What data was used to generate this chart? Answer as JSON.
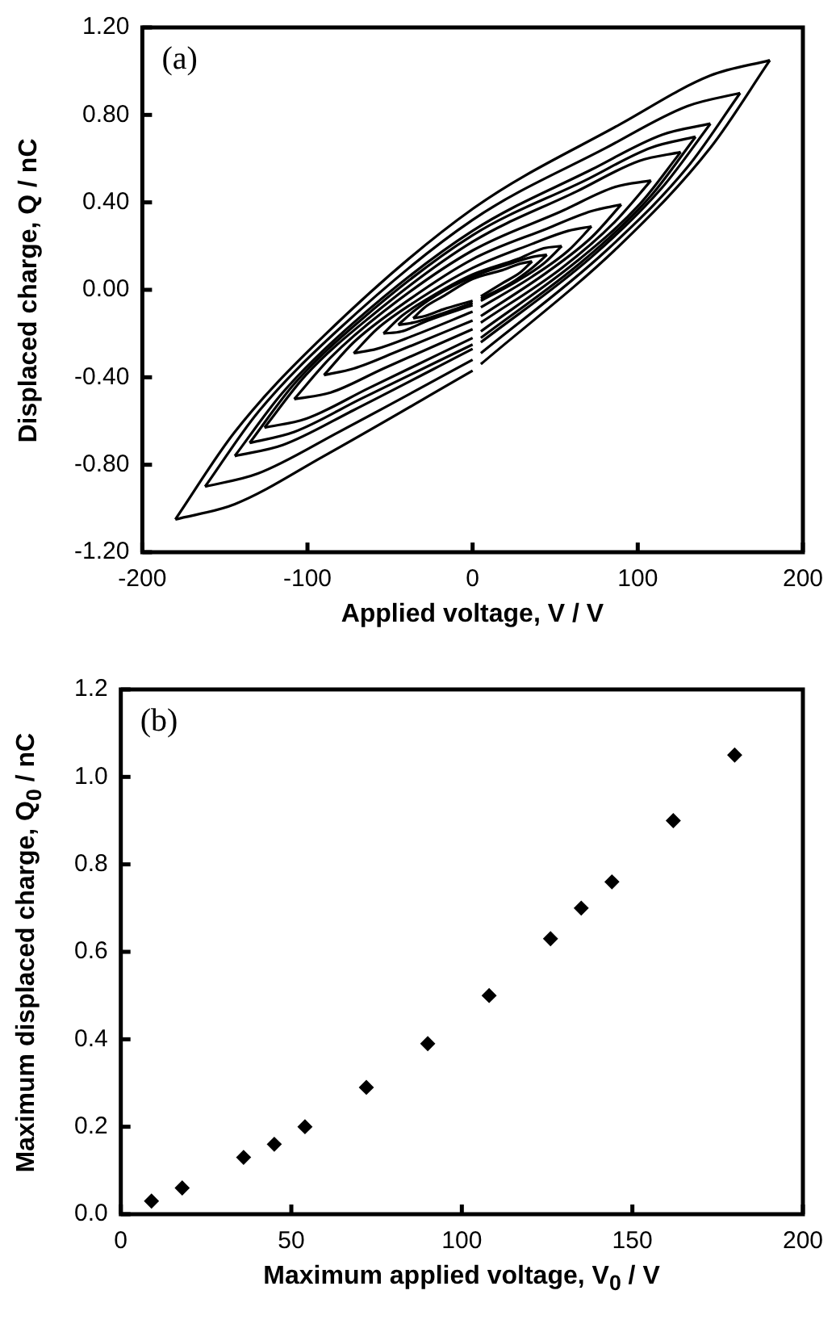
{
  "chart_data": [
    {
      "type": "line",
      "xlabel": "Applied voltage, V / V",
      "ylabel": "Displaced charge, Q / nC",
      "annotations": [
        "(a)"
      ],
      "marker": "none",
      "line_style": "solid",
      "xlim": [
        -200,
        200
      ],
      "xticks": [
        -200,
        -100,
        0,
        100,
        200
      ],
      "ylim": [
        -1.2,
        1.2
      ],
      "yticks": [
        {
          "value": -1.2,
          "label": "-1.20"
        },
        {
          "value": -0.8,
          "label": "-0.80"
        },
        {
          "value": -0.4,
          "label": "-0.40"
        },
        {
          "value": 0,
          "label": "0.00"
        },
        {
          "value": 0.4,
          "label": "0.40"
        },
        {
          "value": 0.8,
          "label": "0.80"
        },
        {
          "value": 1.2,
          "label": "1.20"
        }
      ],
      "series": [
        {
          "color": "#000000",
          "x": [
            -180,
            -144,
            -90,
            0,
            90,
            144,
            180
          ],
          "values": [
            -1.05,
            -0.65,
            -0.21,
            0.37,
            0.76,
            0.98,
            1.05
          ]
        },
        {
          "color": "#000000",
          "x": [
            -180,
            -144,
            -90,
            0
          ],
          "values": [
            -1.05,
            -0.98,
            -0.76,
            -0.37
          ]
        },
        {
          "color": "#000000",
          "x": [
            5,
            90,
            144,
            180
          ],
          "values": [
            -0.34,
            0.21,
            0.65,
            1.05
          ]
        },
        {
          "color": "#000000",
          "x": [
            -162,
            -130,
            -81,
            0,
            81,
            130,
            162
          ],
          "values": [
            -0.9,
            -0.56,
            -0.18,
            0.32,
            0.65,
            0.84,
            0.9
          ]
        },
        {
          "color": "#000000",
          "x": [
            -162,
            -130,
            -81,
            0
          ],
          "values": [
            -0.9,
            -0.84,
            -0.65,
            -0.32
          ]
        },
        {
          "color": "#000000",
          "x": [
            5,
            81,
            130,
            162
          ],
          "values": [
            -0.29,
            0.18,
            0.56,
            0.9
          ]
        },
        {
          "color": "#000000",
          "x": [
            -144,
            -115,
            -72,
            0,
            72,
            115,
            144
          ],
          "values": [
            -0.76,
            -0.47,
            -0.15,
            0.27,
            0.55,
            0.71,
            0.76
          ]
        },
        {
          "color": "#000000",
          "x": [
            -144,
            -115,
            -72,
            0
          ],
          "values": [
            -0.76,
            -0.71,
            -0.55,
            -0.27
          ]
        },
        {
          "color": "#000000",
          "x": [
            5,
            72,
            115,
            144
          ],
          "values": [
            -0.24,
            0.15,
            0.47,
            0.76
          ]
        },
        {
          "color": "#000000",
          "x": [
            -135,
            -108,
            -68,
            0,
            68,
            108,
            135
          ],
          "values": [
            -0.7,
            -0.43,
            -0.14,
            0.25,
            0.5,
            0.65,
            0.7
          ]
        },
        {
          "color": "#000000",
          "x": [
            -135,
            -108,
            -68,
            0
          ],
          "values": [
            -0.7,
            -0.65,
            -0.5,
            -0.25
          ]
        },
        {
          "color": "#000000",
          "x": [
            5,
            68,
            108,
            135
          ],
          "values": [
            -0.22,
            0.14,
            0.43,
            0.7
          ]
        },
        {
          "color": "#000000",
          "x": [
            -126,
            -101,
            -63,
            0,
            63,
            101,
            126
          ],
          "values": [
            -0.63,
            -0.39,
            -0.13,
            0.22,
            0.45,
            0.59,
            0.63
          ]
        },
        {
          "color": "#000000",
          "x": [
            -126,
            -101,
            -63,
            0
          ],
          "values": [
            -0.63,
            -0.59,
            -0.45,
            -0.22
          ]
        },
        {
          "color": "#000000",
          "x": [
            5,
            63,
            101,
            126
          ],
          "values": [
            -0.19,
            0.13,
            0.39,
            0.63
          ]
        },
        {
          "color": "#000000",
          "x": [
            -108,
            -86,
            -54,
            0,
            54,
            86,
            108
          ],
          "values": [
            -0.5,
            -0.31,
            -0.1,
            0.18,
            0.36,
            0.47,
            0.5
          ]
        },
        {
          "color": "#000000",
          "x": [
            -108,
            -86,
            -54,
            0
          ],
          "values": [
            -0.5,
            -0.47,
            -0.36,
            -0.18
          ]
        },
        {
          "color": "#000000",
          "x": [
            5,
            54,
            86,
            108
          ],
          "values": [
            -0.15,
            0.1,
            0.31,
            0.5
          ]
        },
        {
          "color": "#000000",
          "x": [
            -90,
            -72,
            -45,
            0,
            45,
            72,
            90
          ],
          "values": [
            -0.39,
            -0.24,
            -0.08,
            0.14,
            0.28,
            0.36,
            0.39
          ]
        },
        {
          "color": "#000000",
          "x": [
            -90,
            -72,
            -45,
            0
          ],
          "values": [
            -0.39,
            -0.36,
            -0.28,
            -0.14
          ]
        },
        {
          "color": "#000000",
          "x": [
            5,
            45,
            72,
            90
          ],
          "values": [
            -0.12,
            0.08,
            0.24,
            0.39
          ]
        },
        {
          "color": "#000000",
          "x": [
            -72,
            -58,
            -36,
            0,
            36,
            58,
            72
          ],
          "values": [
            -0.29,
            -0.18,
            -0.06,
            0.1,
            0.21,
            0.27,
            0.29
          ]
        },
        {
          "color": "#000000",
          "x": [
            -72,
            -58,
            -36,
            0
          ],
          "values": [
            -0.29,
            -0.27,
            -0.21,
            -0.1
          ]
        },
        {
          "color": "#000000",
          "x": [
            5,
            36,
            58,
            72
          ],
          "values": [
            -0.08,
            0.06,
            0.18,
            0.29
          ]
        },
        {
          "color": "#000000",
          "x": [
            -54,
            -43,
            -27,
            0,
            27,
            43,
            54
          ],
          "values": [
            -0.2,
            -0.12,
            -0.04,
            0.07,
            0.14,
            0.19,
            0.2
          ]
        },
        {
          "color": "#000000",
          "x": [
            -54,
            -43,
            -27,
            0
          ],
          "values": [
            -0.2,
            -0.19,
            -0.14,
            -0.07
          ]
        },
        {
          "color": "#000000",
          "x": [
            5,
            27,
            43,
            54
          ],
          "values": [
            -0.05,
            0.04,
            0.12,
            0.2
          ]
        },
        {
          "color": "#000000",
          "x": [
            -45,
            -36,
            -23,
            0,
            23,
            36,
            45
          ],
          "values": [
            -0.16,
            -0.1,
            -0.03,
            0.06,
            0.12,
            0.15,
            0.16
          ]
        },
        {
          "color": "#000000",
          "x": [
            -45,
            -36,
            -23,
            0
          ],
          "values": [
            -0.16,
            -0.15,
            -0.12,
            -0.06
          ]
        },
        {
          "color": "#000000",
          "x": [
            5,
            23,
            36,
            45
          ],
          "values": [
            -0.04,
            0.03,
            0.1,
            0.16
          ]
        },
        {
          "color": "#000000",
          "x": [
            -36,
            -29,
            -18,
            0,
            18,
            29,
            36
          ],
          "values": [
            -0.13,
            -0.08,
            -0.03,
            0.05,
            0.09,
            0.12,
            0.13
          ]
        },
        {
          "color": "#000000",
          "x": [
            -36,
            -29,
            -18,
            0
          ],
          "values": [
            -0.13,
            -0.12,
            -0.09,
            -0.05
          ]
        },
        {
          "color": "#000000",
          "x": [
            5,
            18,
            29,
            36
          ],
          "values": [
            -0.03,
            0.03,
            0.08,
            0.13
          ]
        }
      ]
    },
    {
      "type": "scatter",
      "xlabel": "Maximum applied voltage, V$_{0}$ / V",
      "ylabel": "Maximum displaced charge, Q$_{0}$ / nC",
      "annotations": [
        "(b)"
      ],
      "marker": "diamond",
      "color": "#000000",
      "xlim": [
        0,
        200
      ],
      "xticks": [
        0,
        50,
        100,
        150,
        200
      ],
      "ylim": [
        0,
        1.2
      ],
      "yticks": [
        {
          "value": 0,
          "label": "0.0"
        },
        {
          "value": 0.2,
          "label": "0.2"
        },
        {
          "value": 0.4,
          "label": "0.4"
        },
        {
          "value": 0.6,
          "label": "0.6"
        },
        {
          "value": 0.8,
          "label": "0.8"
        },
        {
          "value": 1,
          "label": "1.0"
        },
        {
          "value": 1.2,
          "label": "1.2"
        }
      ],
      "x": [
        9,
        18,
        36,
        45,
        54,
        72,
        90,
        108,
        126,
        135,
        144,
        162,
        180
      ],
      "values": [
        0.03,
        0.06,
        0.13,
        0.16,
        0.2,
        0.29,
        0.39,
        0.5,
        0.63,
        0.7,
        0.76,
        0.9,
        1.05
      ]
    }
  ]
}
